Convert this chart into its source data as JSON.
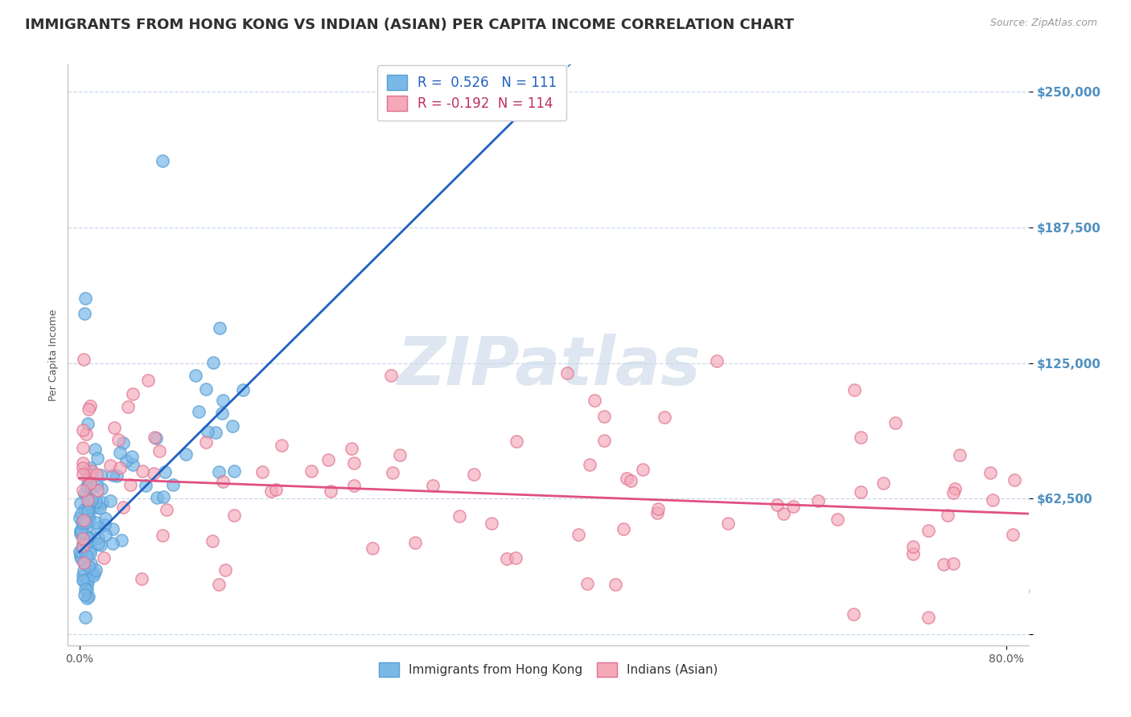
{
  "title": "IMMIGRANTS FROM HONG KONG VS INDIAN (ASIAN) PER CAPITA INCOME CORRELATION CHART",
  "source_text": "Source: ZipAtlas.com",
  "ylabel": "Per Capita Income",
  "xlim": [
    -1,
    82
  ],
  "ylim": [
    -5000,
    262500
  ],
  "yticks": [
    0,
    62500,
    125000,
    187500,
    250000
  ],
  "ytick_labels": [
    "",
    "$62,500",
    "$125,000",
    "$187,500",
    "$250,000"
  ],
  "series": [
    {
      "name": "Immigrants from Hong Kong",
      "dot_color": "#7ab8e8",
      "edge_color": "#5a9fd4",
      "R": 0.526,
      "N": 111,
      "trend_color": "#2060c0"
    },
    {
      "name": "Indians (Asian)",
      "dot_color": "#f4a8b8",
      "edge_color": "#e07090",
      "R": -0.192,
      "N": 114,
      "trend_color": "#e05080"
    }
  ],
  "watermark": "ZIPatlas",
  "watermark_color": "#c8d8e8",
  "background_color": "#ffffff",
  "grid_color": "#c8d8e8",
  "title_color": "#303030",
  "axis_label_color": "#5090c0",
  "legend_hk_color": "#2060c0",
  "legend_ind_color": "#c03060",
  "title_fontsize": 13,
  "ylabel_fontsize": 9
}
